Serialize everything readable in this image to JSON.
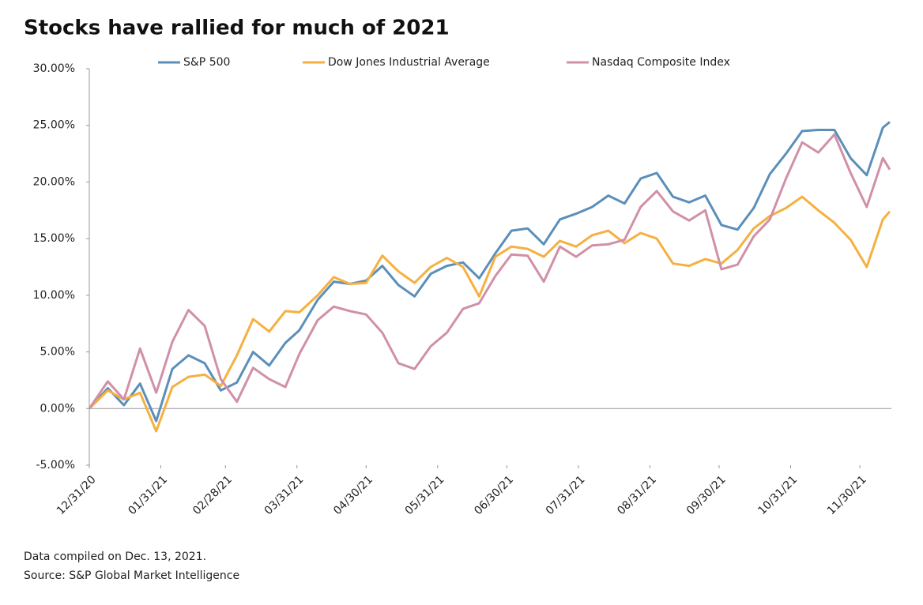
{
  "chart_data": {
    "type": "line",
    "title": "Stocks have rallied for much of 2021",
    "notes": [
      "Data compiled on Dec. 13, 2021.",
      "Source: S&P Global Market Intelligence"
    ],
    "x": [
      "12/31/20",
      "01/08/21",
      "01/15/21",
      "01/22/21",
      "01/29/21",
      "02/05/21",
      "02/12/21",
      "02/19/21",
      "02/26/21",
      "03/05/21",
      "03/12/21",
      "03/19/21",
      "03/26/21",
      "04/01/21",
      "04/09/21",
      "04/16/21",
      "04/23/21",
      "04/30/21",
      "05/07/21",
      "05/14/21",
      "05/21/21",
      "05/28/21",
      "06/04/21",
      "06/11/21",
      "06/18/21",
      "06/25/21",
      "07/02/21",
      "07/09/21",
      "07/16/21",
      "07/23/21",
      "07/30/21",
      "08/06/21",
      "08/13/21",
      "08/20/21",
      "08/27/21",
      "09/03/21",
      "09/10/21",
      "09/17/21",
      "09/24/21",
      "10/01/21",
      "10/08/21",
      "10/15/21",
      "10/22/21",
      "10/29/21",
      "11/05/21",
      "11/12/21",
      "11/19/21",
      "11/26/21",
      "12/03/21",
      "12/10/21",
      "12/13/21"
    ],
    "series": [
      {
        "name": "S&P 500",
        "color": "#5b8fba",
        "values": [
          0,
          1.8,
          0.3,
          2.2,
          -1.1,
          3.5,
          4.7,
          4.0,
          1.6,
          2.3,
          5.0,
          3.8,
          5.8,
          6.9,
          9.6,
          11.2,
          11.0,
          11.3,
          12.6,
          10.9,
          9.9,
          11.9,
          12.6,
          12.9,
          11.5,
          13.7,
          15.7,
          15.9,
          14.5,
          16.7,
          17.2,
          17.8,
          18.8,
          18.1,
          20.3,
          20.8,
          18.7,
          18.2,
          18.8,
          16.2,
          15.8,
          17.7,
          20.7,
          22.5,
          24.5,
          24.6,
          24.6,
          22.1,
          20.6,
          24.8,
          25.3
        ]
      },
      {
        "name": "Dow Jones Industrial Average",
        "color": "#f5b041",
        "values": [
          0,
          1.6,
          0.8,
          1.4,
          -2.0,
          1.9,
          2.8,
          3.0,
          2.0,
          4.7,
          7.9,
          6.8,
          8.6,
          8.5,
          10.0,
          11.6,
          11.0,
          11.1,
          13.5,
          12.1,
          11.1,
          12.5,
          13.3,
          12.5,
          9.9,
          13.4,
          14.3,
          14.1,
          13.4,
          14.8,
          14.3,
          15.3,
          15.7,
          14.6,
          15.5,
          15.0,
          12.8,
          12.6,
          13.2,
          12.8,
          14.0,
          15.9,
          17.0,
          17.7,
          18.7,
          17.5,
          16.4,
          14.9,
          12.5,
          16.7,
          17.4
        ]
      },
      {
        "name": "Nasdaq Composite Index",
        "color": "#d090a8",
        "values": [
          0,
          2.4,
          0.8,
          5.3,
          1.4,
          5.9,
          8.7,
          7.3,
          2.6,
          0.6,
          3.6,
          2.6,
          1.9,
          4.8,
          7.8,
          9.0,
          8.6,
          8.3,
          6.7,
          4.0,
          3.5,
          5.5,
          6.7,
          8.8,
          9.3,
          11.7,
          13.6,
          13.5,
          11.2,
          14.3,
          13.4,
          14.4,
          14.5,
          14.9,
          17.8,
          19.2,
          17.4,
          16.6,
          17.5,
          12.3,
          12.7,
          15.2,
          16.7,
          20.3,
          23.5,
          22.6,
          24.2,
          20.8,
          17.8,
          22.1,
          21.1
        ]
      }
    ],
    "xlim": [
      "12/31/20",
      "12/13/21"
    ],
    "xticks": [
      "12/31/20",
      "01/31/21",
      "02/28/21",
      "03/31/21",
      "04/30/21",
      "05/31/21",
      "06/30/21",
      "07/31/21",
      "08/31/21",
      "09/30/21",
      "10/31/21",
      "11/30/21"
    ],
    "ylim": [
      -5,
      30
    ],
    "yticks": [
      {
        "value": -5,
        "label": "-5.00%"
      },
      {
        "value": 0,
        "label": "0.00%"
      },
      {
        "value": 5,
        "label": "5.00%"
      },
      {
        "value": 10,
        "label": "10.00%"
      },
      {
        "value": 15,
        "label": "15.00%"
      },
      {
        "value": 20,
        "label": "20.00%"
      },
      {
        "value": 25,
        "label": "25.00%"
      },
      {
        "value": 30,
        "label": "30.00%"
      }
    ],
    "grid": false,
    "legend": "top"
  }
}
